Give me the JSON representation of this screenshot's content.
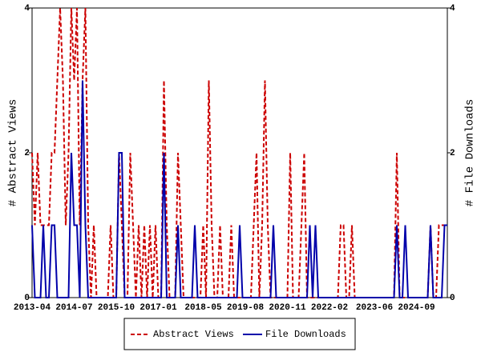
{
  "chart_data": {
    "type": "line",
    "categories": [
      "2013-04",
      null,
      null,
      null,
      null,
      null,
      null,
      null,
      null,
      null,
      null,
      null,
      null,
      null,
      null,
      "2014-07",
      null,
      null,
      null,
      null,
      null,
      null,
      null,
      null,
      null,
      null,
      null,
      null,
      null,
      null,
      "2015-10",
      null,
      null,
      null,
      null,
      null,
      null,
      null,
      null,
      null,
      null,
      null,
      null,
      null,
      null,
      "2017-01",
      null,
      null,
      null,
      null,
      null,
      null,
      null,
      null,
      null,
      null,
      null,
      null,
      null,
      null,
      null,
      "2018-05",
      null,
      null,
      null,
      null,
      null,
      null,
      null,
      null,
      null,
      null,
      null,
      null,
      null,
      null,
      "2019-08",
      null,
      null,
      null,
      null,
      null,
      null,
      null,
      null,
      null,
      null,
      null,
      null,
      null,
      null,
      "2020-11",
      null,
      null,
      null,
      null,
      null,
      null,
      null,
      null,
      null,
      null,
      null,
      null,
      null,
      null,
      "2022-02",
      null,
      null,
      null,
      null,
      null,
      null,
      null,
      null,
      null,
      null,
      null,
      null,
      null,
      null,
      null,
      "2023-06",
      null,
      null,
      null,
      null,
      null,
      null,
      null,
      null,
      null,
      null,
      null,
      null,
      null,
      null,
      "2024-09",
      null,
      null,
      null,
      null,
      null,
      null,
      null,
      null,
      null,
      null,
      null
    ],
    "series": [
      {
        "name": "Abstract Views",
        "color": "#cc0000",
        "axis": "y",
        "values": [
          2,
          1,
          2,
          1,
          1,
          1,
          1,
          2,
          2,
          3,
          4,
          3,
          1,
          2,
          4,
          3,
          4,
          1,
          3,
          4,
          1,
          0,
          1,
          0,
          0,
          0,
          0,
          0,
          1,
          0,
          0,
          2,
          1,
          0,
          0,
          2,
          1,
          0,
          1,
          0,
          1,
          0,
          1,
          0,
          1,
          0,
          0,
          3,
          1,
          0,
          0,
          0,
          2,
          1,
          0,
          0,
          0,
          0,
          0,
          0,
          0,
          1,
          0,
          3,
          1,
          0,
          0,
          1,
          0,
          0,
          0,
          1,
          0,
          0,
          0,
          0,
          0,
          0,
          0,
          1,
          2,
          0,
          1,
          3,
          1,
          0,
          0,
          0,
          0,
          0,
          0,
          0,
          2,
          0,
          0,
          0,
          1,
          2,
          0,
          0,
          0,
          0,
          0,
          0,
          0,
          0,
          0,
          0,
          0,
          0,
          1,
          1,
          0,
          0,
          1,
          0,
          0,
          0,
          0,
          0,
          0,
          0,
          0,
          0,
          0,
          0,
          0,
          0,
          0,
          0,
          2,
          0,
          0,
          0,
          0,
          0,
          0,
          0,
          0,
          0,
          0,
          0,
          1,
          0,
          0,
          1,
          1,
          1,
          1
        ]
      },
      {
        "name": "File Downloads",
        "color": "#0000aa",
        "axis": "y2",
        "values": [
          1,
          0,
          0,
          0,
          1,
          0,
          0,
          1,
          1,
          0,
          0,
          0,
          0,
          0,
          2,
          1,
          1,
          0,
          3,
          1,
          0,
          0,
          0,
          0,
          0,
          0,
          0,
          0,
          0,
          0,
          0,
          2,
          2,
          0,
          0,
          0,
          0,
          0,
          0,
          0,
          0,
          0,
          0,
          0,
          0,
          0,
          0,
          2,
          0,
          0,
          0,
          0,
          1,
          0,
          0,
          0,
          0,
          0,
          1,
          0,
          0,
          0,
          0,
          0,
          0,
          0,
          0,
          0,
          0,
          0,
          0,
          0,
          0,
          0,
          1,
          0,
          0,
          0,
          0,
          0,
          0,
          0,
          0,
          0,
          0,
          0,
          1,
          0,
          0,
          0,
          0,
          0,
          0,
          0,
          0,
          0,
          0,
          0,
          0,
          1,
          0,
          1,
          0,
          0,
          0,
          0,
          0,
          0,
          0,
          0,
          0,
          0,
          0,
          0,
          0,
          0,
          0,
          0,
          0,
          0,
          0,
          0,
          0,
          0,
          0,
          0,
          0,
          0,
          0,
          0,
          1,
          0,
          0,
          1,
          0,
          0,
          0,
          0,
          0,
          0,
          0,
          0,
          1,
          0,
          0,
          0,
          0,
          1,
          1
        ]
      }
    ],
    "ylabel": "# Abstract Views",
    "y2label": "# File Downloads",
    "ylim": [
      0,
      4
    ],
    "yticks": [
      0,
      2,
      4
    ],
    "y2lim": [
      0,
      4
    ],
    "y2ticks": [
      0,
      2,
      4
    ],
    "legend": "bottom"
  }
}
